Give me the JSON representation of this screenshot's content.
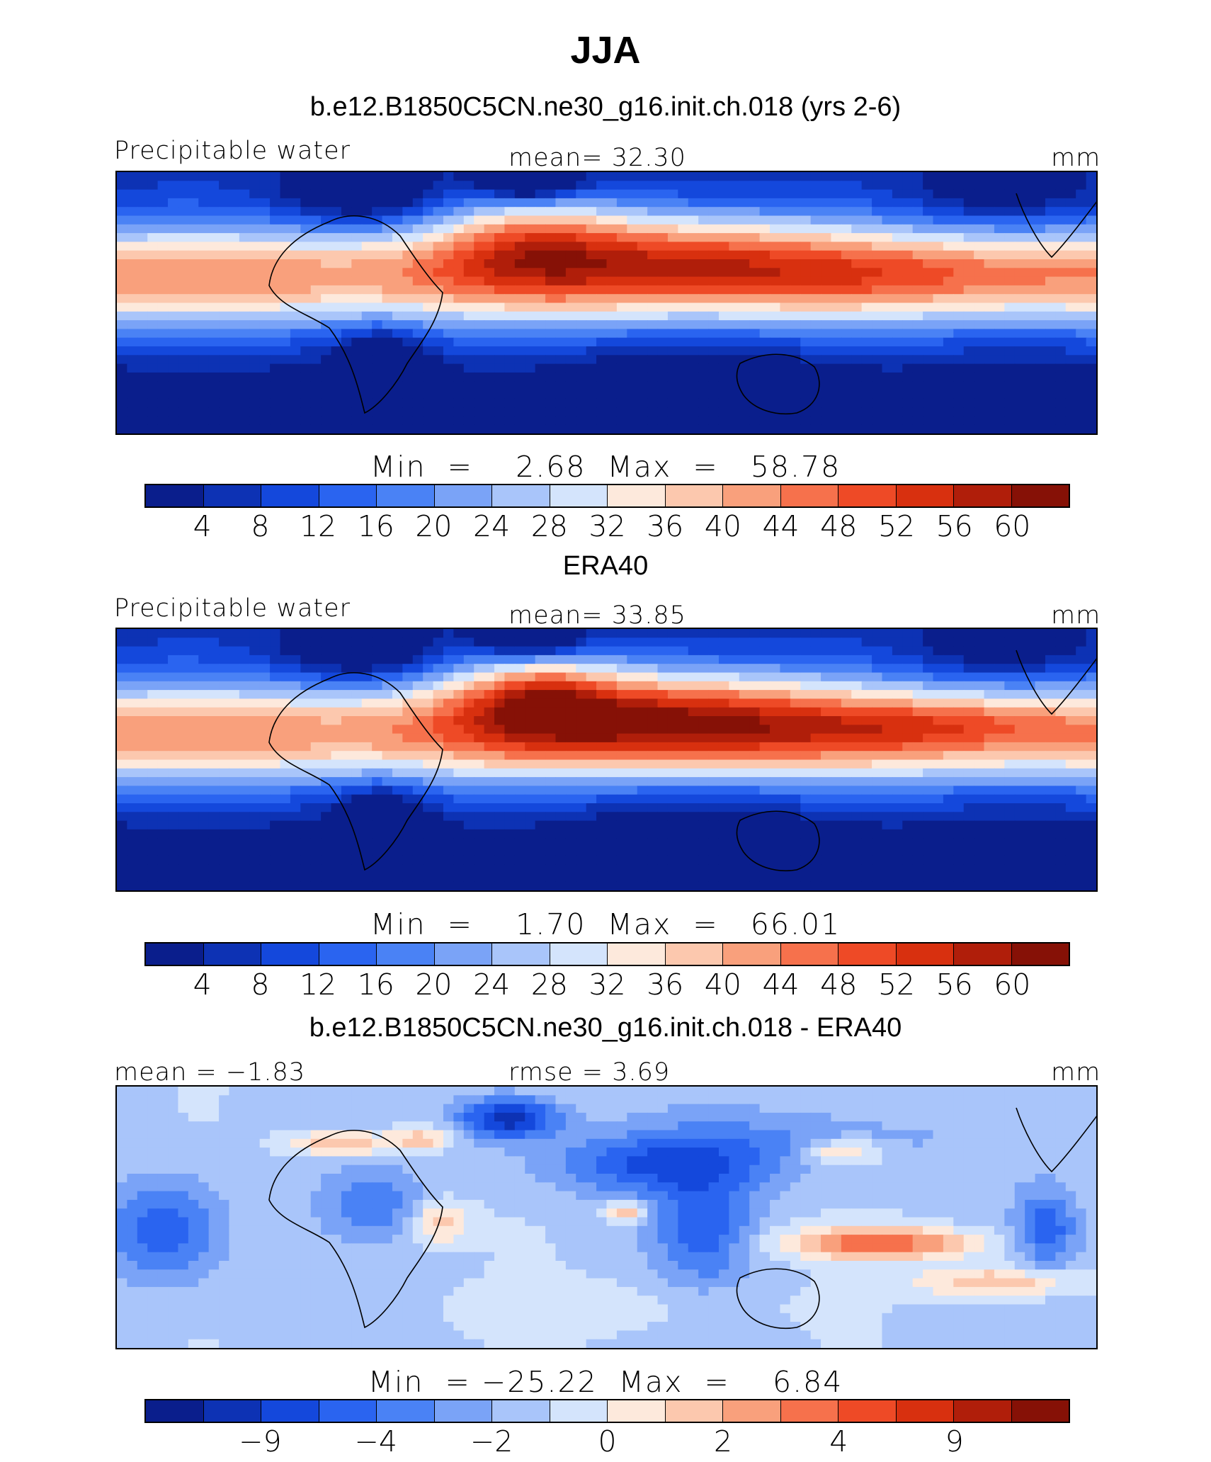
{
  "figure": {
    "title": "JJA"
  },
  "palette": [
    "#0a1e8c",
    "#0d32b4",
    "#1448dc",
    "#2a64f0",
    "#4a82f5",
    "#7aa3f7",
    "#a9c5fa",
    "#d4e4fc",
    "#fde9dc",
    "#fcc8ae",
    "#f9a07c",
    "#f6714c",
    "#ee4a26",
    "#d8300f",
    "#b01e0a",
    "#861106"
  ],
  "panels": [
    {
      "title": "b.e12.B1850C5CN.ne30_g16.init.ch.018 (yrs 2-6)",
      "left_label": "Precipitable water",
      "center_label": "mean=   32.30",
      "right_label": "mm",
      "stats": "Min  =    2.68  Max  =   58.78",
      "tick_labels": [
        "4",
        "8",
        "12",
        "16",
        "20",
        "24",
        "28",
        "32",
        "36",
        "40",
        "44",
        "48",
        "52",
        "56",
        "60"
      ],
      "field": "model"
    },
    {
      "title": "ERA40",
      "left_label": "Precipitable water",
      "center_label": "mean=   33.85",
      "right_label": "mm",
      "stats": "Min  =    1.70  Max  =   66.01",
      "tick_labels": [
        "4",
        "8",
        "12",
        "16",
        "20",
        "24",
        "28",
        "32",
        "36",
        "40",
        "44",
        "48",
        "52",
        "56",
        "60"
      ],
      "field": "obs"
    },
    {
      "title": "b.e12.B1850C5CN.ne30_g16.init.ch.018 - ERA40",
      "left_label": "mean  =   −1.83",
      "center_label": "rmse  =      3.69",
      "right_label": "mm",
      "stats": "Min  = −25.22  Max  =    6.84",
      "tick_labels": [
        "−9",
        "−4",
        "−2",
        "0",
        "2",
        "4",
        "9"
      ],
      "tick_positions": [
        2,
        4,
        6,
        8,
        10,
        12,
        14
      ],
      "field": "diff"
    }
  ]
}
